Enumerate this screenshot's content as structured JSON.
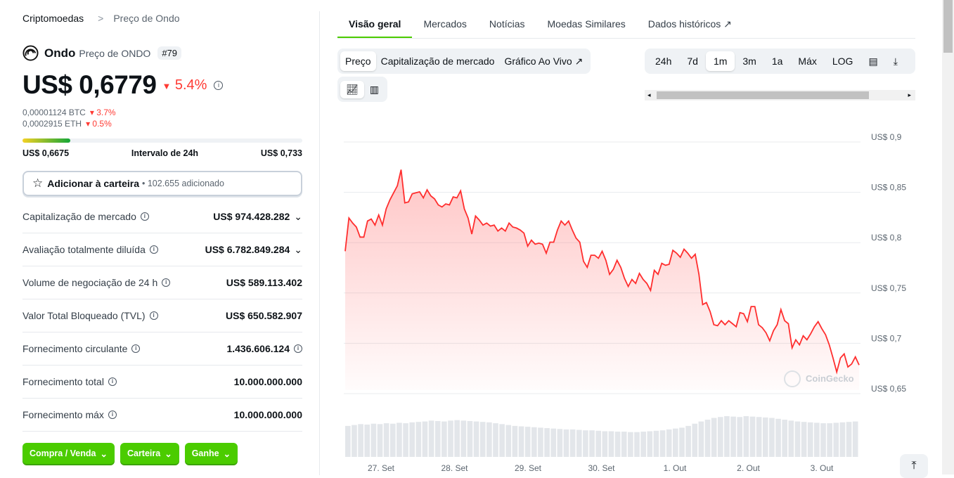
{
  "breadcrumb": {
    "root": "Criptomoedas",
    "sep": ">",
    "current": "Preço de Ondo"
  },
  "coin": {
    "name": "Ondo",
    "subtitle": "Preço de ONDO",
    "rank": "#79",
    "price": "US$ 0,6779",
    "change": "5.4%",
    "btc": "0,00001124 BTC",
    "btc_change": "3.7%",
    "eth": "0,0002915 ETH",
    "eth_change": "0.5%"
  },
  "range24h": {
    "low": "US$ 0,6675",
    "label": "Intervalo de 24h",
    "high": "US$ 0,733",
    "position_percent": 17
  },
  "wallet": {
    "label": "Adicionar à carteira",
    "count": "• 102.655 adicionado"
  },
  "stats": [
    {
      "label": "Capitalização de mercado",
      "value": "US$ 974.428.282",
      "chevron": true
    },
    {
      "label": "Avaliação totalmente diluída",
      "value": "US$ 6.782.849.284",
      "chevron": true
    },
    {
      "label": "Volume de negociação de 24 h",
      "value": "US$ 589.113.402"
    },
    {
      "label": "Valor Total Bloqueado (TVL)",
      "value": "US$ 650.582.907"
    },
    {
      "label": "Fornecimento circulante",
      "value": "1.436.606.124",
      "info": true
    },
    {
      "label": "Fornecimento total",
      "value": "10.000.000.000"
    },
    {
      "label": "Fornecimento máx",
      "value": "10.000.000.000"
    }
  ],
  "actions": [
    "Compra / Venda",
    "Carteira",
    "Ganhe"
  ],
  "tabs": [
    "Visão geral",
    "Mercados",
    "Notícias",
    "Moedas Similares",
    "Dados históricos"
  ],
  "chart_types": [
    "Preço",
    "Capitalização de mercado",
    "Gráfico Ao Vivo"
  ],
  "ranges": [
    "24h",
    "7d",
    "1m",
    "3m",
    "1a",
    "Máx",
    "LOG"
  ],
  "selected_range": "1m",
  "colors": {
    "accent": "#4bcc00",
    "down": "#ff3a33",
    "line": "#ff2e2e"
  },
  "chart_data": {
    "type": "area",
    "y_ticks": [
      "US$ 0,9",
      "US$ 0,85",
      "US$ 0,8",
      "US$ 0,75",
      "US$ 0,7",
      "US$ 0,65"
    ],
    "ylim": [
      0.65,
      0.9
    ],
    "x_ticks": [
      "27. Set",
      "28. Set",
      "29. Set",
      "30. Set",
      "1. Out",
      "2. Out",
      "3. Out"
    ],
    "watermark": "CoinGecko",
    "prices": [
      0.788,
      0.821,
      0.816,
      0.812,
      0.802,
      0.802,
      0.818,
      0.82,
      0.814,
      0.824,
      0.814,
      0.83,
      0.839,
      0.846,
      0.853,
      0.869,
      0.836,
      0.837,
      0.845,
      0.846,
      0.847,
      0.841,
      0.849,
      0.843,
      0.84,
      0.834,
      0.832,
      0.835,
      0.834,
      0.842,
      0.841,
      0.848,
      0.83,
      0.821,
      0.805,
      0.823,
      0.819,
      0.814,
      0.816,
      0.813,
      0.814,
      0.808,
      0.811,
      0.808,
      0.816,
      0.812,
      0.811,
      0.809,
      0.806,
      0.793,
      0.799,
      0.795,
      0.796,
      0.795,
      0.786,
      0.797,
      0.797,
      0.809,
      0.818,
      0.814,
      0.818,
      0.809,
      0.801,
      0.797,
      0.778,
      0.772,
      0.784,
      0.784,
      0.781,
      0.788,
      0.779,
      0.765,
      0.77,
      0.779,
      0.772,
      0.761,
      0.753,
      0.76,
      0.756,
      0.766,
      0.76,
      0.756,
      0.749,
      0.769,
      0.765,
      0.776,
      0.774,
      0.775,
      0.789,
      0.786,
      0.782,
      0.79,
      0.786,
      0.781,
      0.785,
      0.765,
      0.735,
      0.737,
      0.728,
      0.715,
      0.714,
      0.719,
      0.715,
      0.719,
      0.716,
      0.713,
      0.727,
      0.726,
      0.718,
      0.733,
      0.733,
      0.715,
      0.712,
      0.707,
      0.699,
      0.709,
      0.715,
      0.73,
      0.719,
      0.716,
      0.692,
      0.7,
      0.695,
      0.704,
      0.7,
      0.706,
      0.713,
      0.718,
      0.711,
      0.705,
      0.695,
      0.682,
      0.668,
      0.682,
      0.686,
      0.673,
      0.676,
      0.683,
      0.675
    ],
    "volume_relative": [
      70,
      72,
      74,
      73,
      75,
      74,
      76,
      75,
      77,
      76,
      78,
      79,
      80,
      82,
      81,
      80,
      82,
      83,
      82,
      81,
      80,
      79,
      78,
      76,
      74,
      72,
      70,
      69,
      68,
      67,
      66,
      65,
      64,
      63,
      62,
      62,
      61,
      60,
      60,
      59,
      58,
      58,
      57,
      57,
      56,
      56,
      57,
      58,
      59,
      60,
      62,
      64,
      66,
      70,
      75,
      80,
      84,
      88,
      90,
      92,
      91,
      90,
      92,
      91,
      90,
      89,
      88,
      86,
      84,
      82,
      80,
      79,
      78,
      77,
      76,
      76,
      77,
      78,
      79,
      80
    ]
  }
}
